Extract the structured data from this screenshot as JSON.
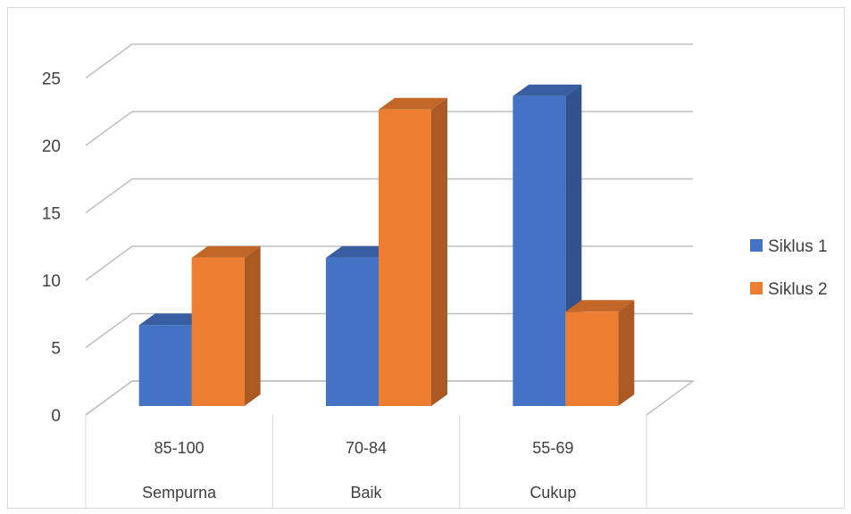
{
  "chart_data": {
    "type": "bar",
    "style": "3d-clustered-column",
    "categories": [
      {
        "range": "85-100",
        "label": "Sempurna"
      },
      {
        "range": "70-84",
        "label": "Baik"
      },
      {
        "range": "55-69",
        "label": "Cukup"
      }
    ],
    "series": [
      {
        "name": "Siklus 1",
        "color": "#4472c4",
        "values": [
          6,
          11,
          23
        ]
      },
      {
        "name": "Siklus 2",
        "color": "#ed7d31",
        "values": [
          11,
          22,
          7
        ]
      }
    ],
    "ylim": [
      0,
      25
    ],
    "yticks": [
      "0",
      "5",
      "10",
      "15",
      "20",
      "25"
    ],
    "grid": true,
    "legend_position": "right"
  }
}
